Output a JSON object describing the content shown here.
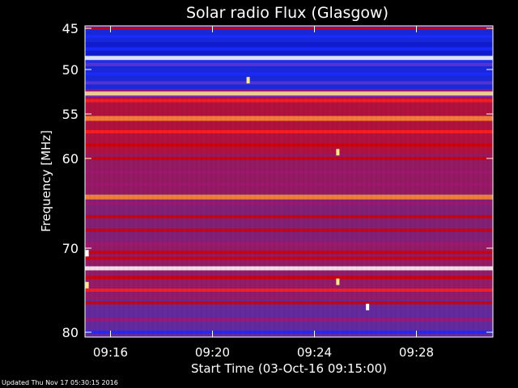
{
  "chart_data": {
    "type": "heatmap",
    "title": "Solar radio Flux (Glasgow)",
    "ylabel": "Frequency [MHz]",
    "xlabel": "Start Time (03-Oct-16 09:15:00)",
    "y_ticks": [
      "45",
      "50",
      "55",
      "60",
      "70",
      "80"
    ],
    "x_ticks": [
      "09:16",
      "09:20",
      "09:24",
      "09:28"
    ],
    "ylim": [
      45,
      80
    ],
    "time_range": [
      "09:15:00",
      "09:31:00"
    ],
    "colorscale": [
      "#000080",
      "#1a2aff",
      "#5a36d6",
      "#a01870",
      "#d40000",
      "#ff2020",
      "#ff9030",
      "#ffe890",
      "#ffffff"
    ],
    "bands": [
      {
        "freq": 45.0,
        "level": 0.55
      },
      {
        "freq": 46.0,
        "level": 0.08
      },
      {
        "freq": 47.5,
        "level": 0.15
      },
      {
        "freq": 48.6,
        "level": 0.98
      },
      {
        "freq": 49.4,
        "level": 0.3
      },
      {
        "freq": 50.5,
        "level": 0.12
      },
      {
        "freq": 51.5,
        "level": 0.25
      },
      {
        "freq": 52.4,
        "level": 0.4
      },
      {
        "freq": 52.7,
        "level": 0.92
      },
      {
        "freq": 53.5,
        "level": 0.62
      },
      {
        "freq": 55.5,
        "level": 0.72
      },
      {
        "freq": 57.0,
        "level": 0.62
      },
      {
        "freq": 58.5,
        "level": 0.52
      },
      {
        "freq": 60.0,
        "level": 0.5
      },
      {
        "freq": 61.5,
        "level": 0.42
      },
      {
        "freq": 62.9,
        "level": 0.38
      },
      {
        "freq": 64.3,
        "level": 0.8
      },
      {
        "freq": 65.0,
        "level": 0.4
      },
      {
        "freq": 66.5,
        "level": 0.52
      },
      {
        "freq": 68.0,
        "level": 0.48
      },
      {
        "freq": 69.5,
        "level": 0.42
      },
      {
        "freq": 70.5,
        "level": 0.56
      },
      {
        "freq": 71.2,
        "level": 0.48
      },
      {
        "freq": 72.4,
        "level": 0.96
      },
      {
        "freq": 73.5,
        "level": 0.52
      },
      {
        "freq": 75.0,
        "level": 0.58
      },
      {
        "freq": 76.5,
        "level": 0.46
      },
      {
        "freq": 78.5,
        "level": 0.32
      },
      {
        "freq": 80.0,
        "level": 0.18
      }
    ],
    "bursts": [
      {
        "time": "09:15:05",
        "freq": 70.6,
        "level": 1.0
      },
      {
        "time": "09:15:05",
        "freq": 74.4,
        "level": 0.9
      },
      {
        "time": "09:21:24",
        "freq": 51.2,
        "level": 0.85
      },
      {
        "time": "09:24:55",
        "freq": 59.3,
        "level": 0.85
      },
      {
        "time": "09:24:55",
        "freq": 74.0,
        "level": 0.85
      },
      {
        "time": "09:26:05",
        "freq": 77.0,
        "level": 0.95
      }
    ]
  },
  "footer": {
    "updated": "Updated Thu Nov 17 05:30:15 2016"
  }
}
